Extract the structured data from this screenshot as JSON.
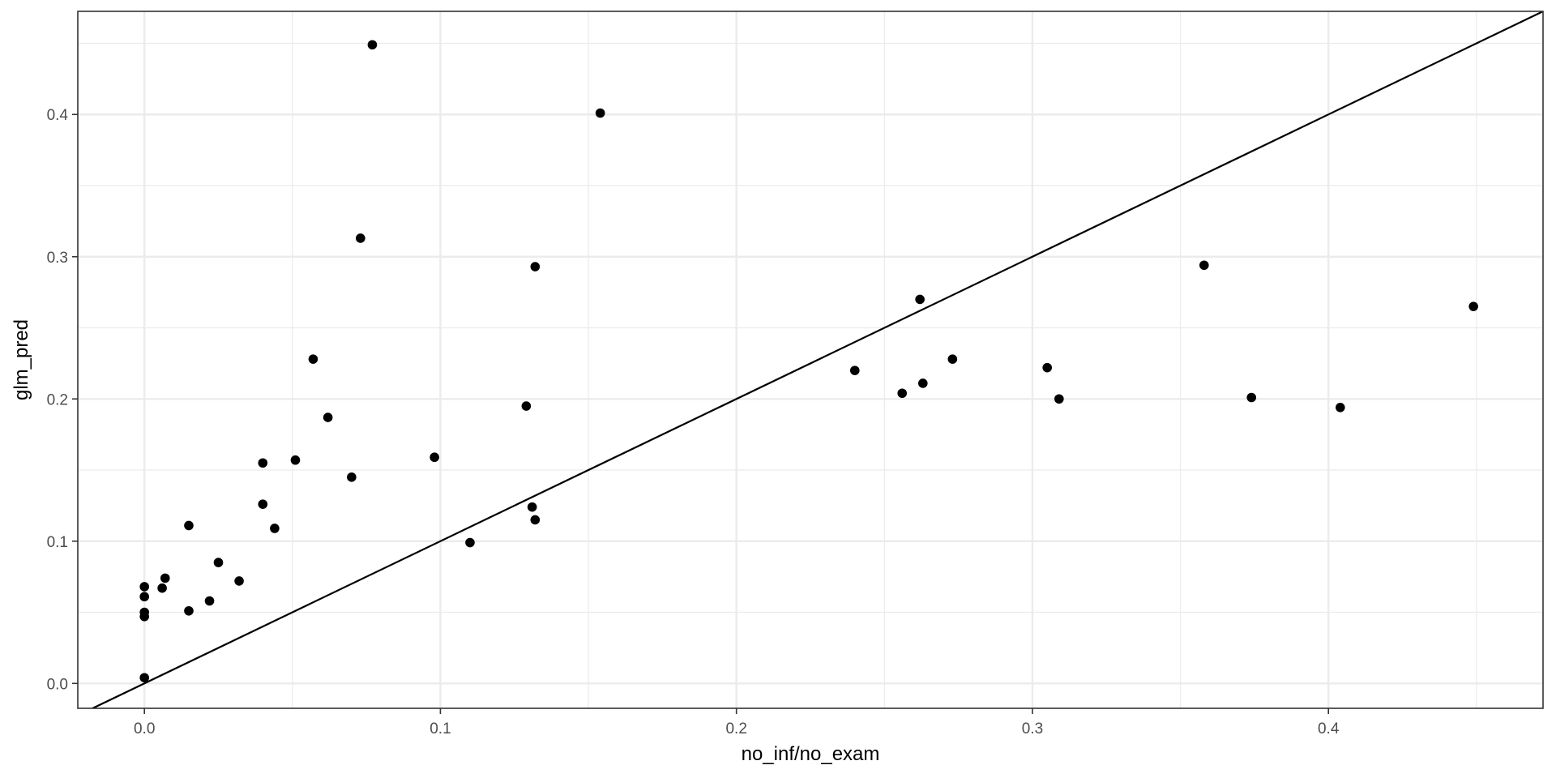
{
  "chart_data": {
    "type": "scatter",
    "title": "",
    "xlabel": "no_inf/no_exam",
    "ylabel": "glm_pred",
    "xlim": [
      -0.0225,
      0.4725
    ],
    "ylim": [
      -0.0175,
      0.4725
    ],
    "x_ticks": [
      0.0,
      0.1,
      0.2,
      0.3,
      0.4
    ],
    "y_ticks": [
      0.0,
      0.1,
      0.2,
      0.3,
      0.4
    ],
    "x_tick_labels": [
      "0.0",
      "0.1",
      "0.2",
      "0.3",
      "0.4"
    ],
    "y_tick_labels": [
      "0.0",
      "0.1",
      "0.2",
      "0.3",
      "0.4"
    ],
    "grid": true,
    "legend": "none",
    "reference_line": {
      "slope": 1,
      "intercept": 0
    },
    "colors": {
      "point": "#000000",
      "line": "#000000",
      "grid": "#ebebeb",
      "panel_border": "#333333",
      "background": "#ffffff"
    },
    "points": [
      {
        "x": 0.0,
        "y": 0.004
      },
      {
        "x": 0.0,
        "y": 0.047
      },
      {
        "x": 0.0,
        "y": 0.05
      },
      {
        "x": 0.0,
        "y": 0.061
      },
      {
        "x": 0.0,
        "y": 0.068
      },
      {
        "x": 0.006,
        "y": 0.067
      },
      {
        "x": 0.007,
        "y": 0.074
      },
      {
        "x": 0.015,
        "y": 0.111
      },
      {
        "x": 0.015,
        "y": 0.051
      },
      {
        "x": 0.022,
        "y": 0.058
      },
      {
        "x": 0.025,
        "y": 0.085
      },
      {
        "x": 0.032,
        "y": 0.072
      },
      {
        "x": 0.04,
        "y": 0.155
      },
      {
        "x": 0.04,
        "y": 0.126
      },
      {
        "x": 0.044,
        "y": 0.109
      },
      {
        "x": 0.051,
        "y": 0.157
      },
      {
        "x": 0.057,
        "y": 0.228
      },
      {
        "x": 0.062,
        "y": 0.187
      },
      {
        "x": 0.07,
        "y": 0.145
      },
      {
        "x": 0.073,
        "y": 0.313
      },
      {
        "x": 0.077,
        "y": 0.449
      },
      {
        "x": 0.098,
        "y": 0.159
      },
      {
        "x": 0.11,
        "y": 0.099
      },
      {
        "x": 0.129,
        "y": 0.195
      },
      {
        "x": 0.131,
        "y": 0.124
      },
      {
        "x": 0.132,
        "y": 0.115
      },
      {
        "x": 0.132,
        "y": 0.293
      },
      {
        "x": 0.154,
        "y": 0.401
      },
      {
        "x": 0.24,
        "y": 0.22
      },
      {
        "x": 0.256,
        "y": 0.204
      },
      {
        "x": 0.262,
        "y": 0.27
      },
      {
        "x": 0.263,
        "y": 0.211
      },
      {
        "x": 0.273,
        "y": 0.228
      },
      {
        "x": 0.305,
        "y": 0.222
      },
      {
        "x": 0.309,
        "y": 0.2
      },
      {
        "x": 0.358,
        "y": 0.294
      },
      {
        "x": 0.374,
        "y": 0.201
      },
      {
        "x": 0.404,
        "y": 0.194
      },
      {
        "x": 0.449,
        "y": 0.265
      }
    ]
  }
}
